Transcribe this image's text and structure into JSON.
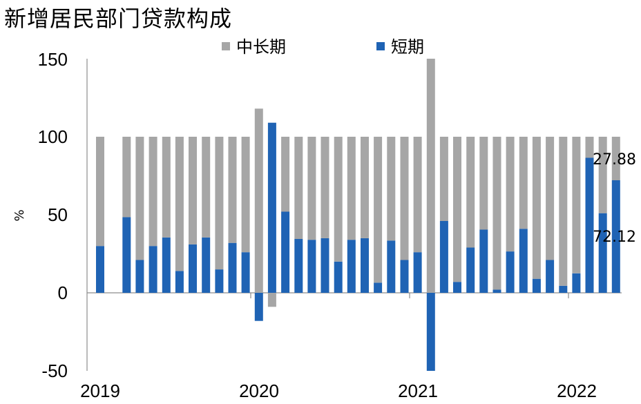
{
  "chart_data": {
    "type": "bar",
    "stacked": true,
    "title": "新增居民部门贷款构成",
    "ylabel": "%",
    "ylim": [
      -50,
      150
    ],
    "yticks": [
      -50,
      0,
      50,
      100,
      150
    ],
    "xticks": [
      "2019",
      "2020",
      "2021",
      "2022"
    ],
    "legend_position": "top",
    "colors": {
      "long_term": "#a6a6a6",
      "short_term": "#1f63b4"
    },
    "categories": [
      "2019-01",
      "2019-02",
      "2019-03",
      "2019-04",
      "2019-05",
      "2019-06",
      "2019-07",
      "2019-08",
      "2019-09",
      "2019-10",
      "2019-11",
      "2019-12",
      "2020-01",
      "2020-02",
      "2020-03",
      "2020-04",
      "2020-05",
      "2020-06",
      "2020-07",
      "2020-08",
      "2020-09",
      "2020-10",
      "2020-11",
      "2020-12",
      "2021-01",
      "2021-02",
      "2021-03",
      "2021-04",
      "2021-05",
      "2021-06",
      "2021-07",
      "2021-08",
      "2021-09",
      "2021-10",
      "2021-11",
      "2021-12",
      "2022-01",
      "2022-02",
      "2022-03",
      "2022-04"
    ],
    "series": [
      {
        "name": "短期",
        "key": "short_term",
        "values": [
          30,
          null,
          48.5,
          21,
          30,
          35.5,
          14,
          31,
          35.5,
          15,
          32,
          26,
          -18,
          109,
          52,
          34.5,
          34,
          35,
          20,
          34,
          35,
          6.5,
          33.5,
          21,
          26,
          -50,
          46,
          7,
          29,
          40.5,
          2,
          26.5,
          41,
          9,
          21,
          4.5,
          12.5,
          86.5,
          51,
          72.12
        ]
      },
      {
        "name": "中长期",
        "key": "long_term",
        "values": [
          70,
          null,
          51.5,
          79,
          70,
          64.5,
          86,
          69,
          64.5,
          85,
          68,
          74,
          118,
          -9,
          48,
          65.5,
          66,
          65,
          80,
          66,
          65,
          93.5,
          66.5,
          79,
          74,
          150,
          54,
          93,
          71,
          59.5,
          98,
          73.5,
          59,
          91,
          79,
          95.5,
          87.5,
          13.5,
          49,
          27.88
        ]
      }
    ],
    "annotations": [
      "27.88",
      "72.12"
    ]
  }
}
